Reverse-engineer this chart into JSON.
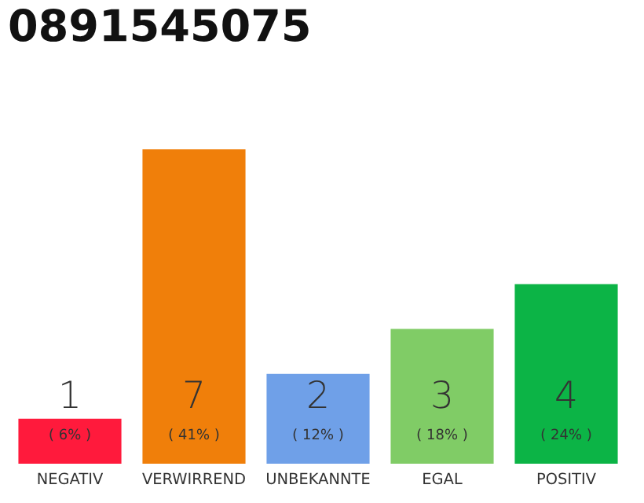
{
  "chart_data": {
    "type": "bar",
    "title": "0891545075",
    "categories": [
      "NEGATIV",
      "VERWIRREND",
      "UNBEKANNTE",
      "EGAL",
      "POSITIV"
    ],
    "values": [
      1,
      7,
      2,
      3,
      4
    ],
    "colors": [
      "#ff1a3c",
      "#f07f0a",
      "#6fa0e8",
      "#80cc66",
      "#0cb446"
    ],
    "value_labels": [
      "1\n( 6% )",
      "7\n( 41% )",
      "2\n( 12% )",
      "3\n( 18% )",
      "4\n( 24% )"
    ],
    "grid": false,
    "legend": false
  }
}
